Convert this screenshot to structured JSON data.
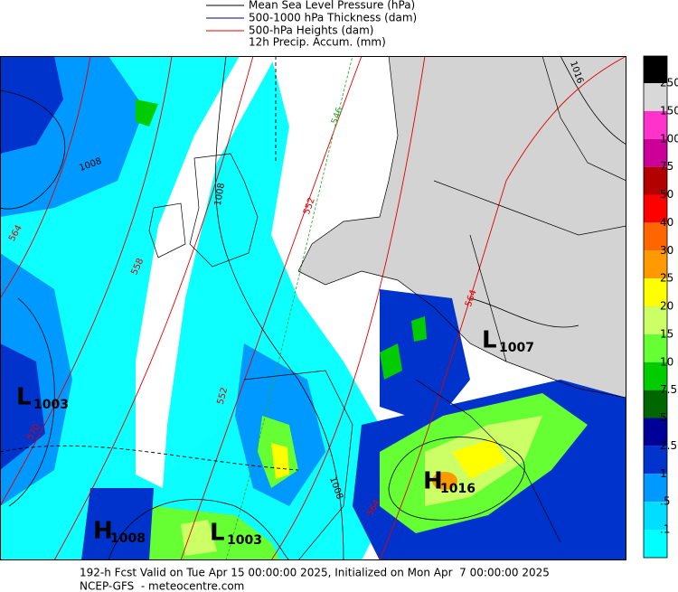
{
  "legend": {
    "items": [
      "Mean Sea Level Pressure (hPa)",
      "500-1000 hPa Thickness (dam)",
      "500-hPa Heights (dam)",
      "12h Precip. Accum. (mm)"
    ]
  },
  "colorbar": {
    "labels": [
      "250",
      "150",
      "100",
      "75",
      "50",
      "40",
      "30",
      "25",
      "20",
      "15",
      "10",
      "7.5",
      "5",
      "2.5",
      "1",
      ".5",
      ".1"
    ],
    "colors": [
      "#000000",
      "#d8d8d8",
      "#ff33cc",
      "#cc0099",
      "#b30000",
      "#ff0000",
      "#ff6600",
      "#ff9900",
      "#ffff00",
      "#ccff66",
      "#66ff33",
      "#00cc00",
      "#006600",
      "#000099",
      "#0033cc",
      "#0099ff",
      "#00ddff",
      "#00ffff",
      "#ffffff"
    ]
  },
  "map": {
    "centers": [
      {
        "letter": "L",
        "value": "1007"
      },
      {
        "letter": "L",
        "value": "1003"
      },
      {
        "letter": "H",
        "value": "1016"
      },
      {
        "letter": "H",
        "value": "1008"
      },
      {
        "letter": "L",
        "value": "1003"
      }
    ],
    "contour_labels": [
      "546",
      "552",
      "558",
      "564",
      "570",
      "564",
      "1008",
      "1008",
      "1008",
      "1016",
      "564",
      "552"
    ]
  },
  "footer": {
    "line1": "192-h Fcst Valid on Tue Apr 15 00:00:00 2025, Initialized on Mon Apr  7 00:00:00 2025",
    "line2": "NCEP-GFS  - meteocentre.com"
  }
}
